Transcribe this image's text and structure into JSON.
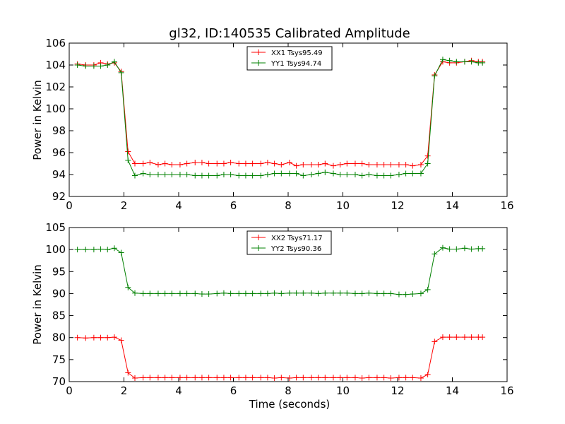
{
  "chart_data": [
    {
      "type": "line",
      "title": "gl32, ID:140535 Calibrated Amplitude",
      "xlabel": "",
      "ylabel": "Power in Kelvin",
      "xlim": [
        0,
        16
      ],
      "ylim": [
        92,
        106
      ],
      "xticks": [
        "0",
        "2",
        "4",
        "6",
        "8",
        "10",
        "12",
        "14",
        "16"
      ],
      "yticks": [
        "92",
        "94",
        "96",
        "98",
        "100",
        "102",
        "104",
        "106"
      ],
      "grid": false,
      "legend_position": "top-center",
      "x": [
        0.3,
        0.6,
        0.9,
        1.15,
        1.4,
        1.65,
        1.9,
        2.15,
        2.4,
        2.7,
        2.95,
        3.25,
        3.5,
        3.75,
        4.05,
        4.3,
        4.6,
        4.85,
        5.1,
        5.4,
        5.65,
        5.9,
        6.2,
        6.45,
        6.7,
        7.0,
        7.25,
        7.5,
        7.75,
        8.05,
        8.3,
        8.55,
        8.85,
        9.1,
        9.35,
        9.65,
        9.9,
        10.15,
        10.45,
        10.7,
        10.95,
        11.25,
        11.5,
        11.75,
        12.05,
        12.3,
        12.55,
        12.85,
        13.1,
        13.35,
        13.65,
        13.9,
        14.15,
        14.45,
        14.7,
        14.95,
        15.1
      ],
      "series": [
        {
          "name": "XX1 Tsys95.49",
          "color": "#ff0000",
          "values": [
            104.1,
            104.0,
            104.0,
            104.2,
            104.1,
            104.2,
            103.4,
            96.1,
            95.0,
            95.0,
            95.1,
            94.9,
            95.0,
            94.9,
            94.9,
            95.0,
            95.1,
            95.1,
            95.0,
            95.0,
            95.0,
            95.1,
            95.0,
            95.0,
            95.0,
            95.0,
            95.1,
            95.0,
            94.9,
            95.1,
            94.8,
            94.9,
            94.9,
            94.9,
            95.0,
            94.8,
            94.9,
            95.0,
            95.0,
            95.0,
            94.9,
            94.9,
            94.9,
            94.9,
            94.9,
            94.9,
            94.8,
            94.9,
            95.7,
            103.1,
            104.3,
            104.2,
            104.2,
            104.3,
            104.4,
            104.3,
            104.3
          ]
        },
        {
          "name": "YY1 Tsys94.74",
          "color": "#008000",
          "values": [
            104.0,
            103.9,
            103.9,
            103.9,
            104.0,
            104.3,
            103.3,
            95.3,
            93.9,
            94.1,
            94.0,
            94.0,
            94.0,
            94.0,
            94.0,
            94.0,
            93.9,
            93.9,
            93.9,
            93.9,
            94.0,
            94.0,
            93.9,
            93.9,
            93.9,
            93.9,
            94.0,
            94.1,
            94.1,
            94.1,
            94.1,
            93.9,
            94.0,
            94.1,
            94.2,
            94.1,
            94.0,
            94.0,
            94.0,
            93.9,
            94.0,
            93.9,
            93.9,
            93.9,
            94.0,
            94.1,
            94.1,
            94.1,
            95.0,
            103.0,
            104.5,
            104.4,
            104.3,
            104.3,
            104.3,
            104.2,
            104.2
          ]
        }
      ]
    },
    {
      "type": "line",
      "title": "",
      "xlabel": "Time (seconds)",
      "ylabel": "Power in Kelvin",
      "xlim": [
        0,
        16
      ],
      "ylim": [
        70,
        105
      ],
      "xticks": [
        "0",
        "2",
        "4",
        "6",
        "8",
        "10",
        "12",
        "14",
        "16"
      ],
      "yticks": [
        "70",
        "75",
        "80",
        "85",
        "90",
        "95",
        "100",
        "105"
      ],
      "grid": false,
      "legend_position": "top-center",
      "x": [
        0.3,
        0.6,
        0.9,
        1.15,
        1.4,
        1.65,
        1.9,
        2.15,
        2.4,
        2.7,
        2.95,
        3.25,
        3.5,
        3.75,
        4.05,
        4.3,
        4.6,
        4.85,
        5.1,
        5.4,
        5.65,
        5.9,
        6.2,
        6.45,
        6.7,
        7.0,
        7.25,
        7.5,
        7.75,
        8.05,
        8.3,
        8.55,
        8.85,
        9.1,
        9.35,
        9.65,
        9.9,
        10.15,
        10.45,
        10.7,
        10.95,
        11.25,
        11.5,
        11.75,
        12.05,
        12.3,
        12.55,
        12.85,
        13.1,
        13.35,
        13.65,
        13.9,
        14.15,
        14.45,
        14.7,
        14.95,
        15.1
      ],
      "series": [
        {
          "name": "XX2 Tsys71.17",
          "color": "#ff0000",
          "values": [
            80.0,
            79.9,
            80.0,
            80.0,
            80.0,
            80.1,
            79.4,
            72.0,
            70.8,
            70.9,
            70.9,
            70.9,
            70.9,
            70.9,
            70.9,
            70.9,
            70.9,
            70.9,
            70.9,
            70.9,
            70.9,
            70.9,
            70.9,
            70.9,
            70.9,
            70.9,
            70.9,
            70.8,
            70.9,
            70.8,
            70.9,
            70.9,
            70.9,
            70.9,
            70.9,
            70.9,
            70.9,
            70.9,
            70.9,
            70.8,
            70.9,
            70.9,
            70.9,
            70.8,
            70.9,
            70.9,
            70.9,
            70.8,
            71.6,
            79.1,
            80.1,
            80.1,
            80.1,
            80.1,
            80.1,
            80.1,
            80.1
          ]
        },
        {
          "name": "YY2 Tsys90.36",
          "color": "#008000",
          "values": [
            100.0,
            100.0,
            100.0,
            100.1,
            100.0,
            100.3,
            99.3,
            91.4,
            90.1,
            90.0,
            90.0,
            90.0,
            90.0,
            90.0,
            90.0,
            90.0,
            90.0,
            89.9,
            89.9,
            90.0,
            90.1,
            90.0,
            90.0,
            90.0,
            90.0,
            90.0,
            90.0,
            90.1,
            90.0,
            90.1,
            90.1,
            90.1,
            90.1,
            90.0,
            90.1,
            90.1,
            90.1,
            90.1,
            90.0,
            90.0,
            90.1,
            90.0,
            90.0,
            90.0,
            89.8,
            89.8,
            89.9,
            90.0,
            90.9,
            99.0,
            100.4,
            100.1,
            100.1,
            100.3,
            100.1,
            100.2,
            100.2
          ]
        }
      ]
    }
  ]
}
